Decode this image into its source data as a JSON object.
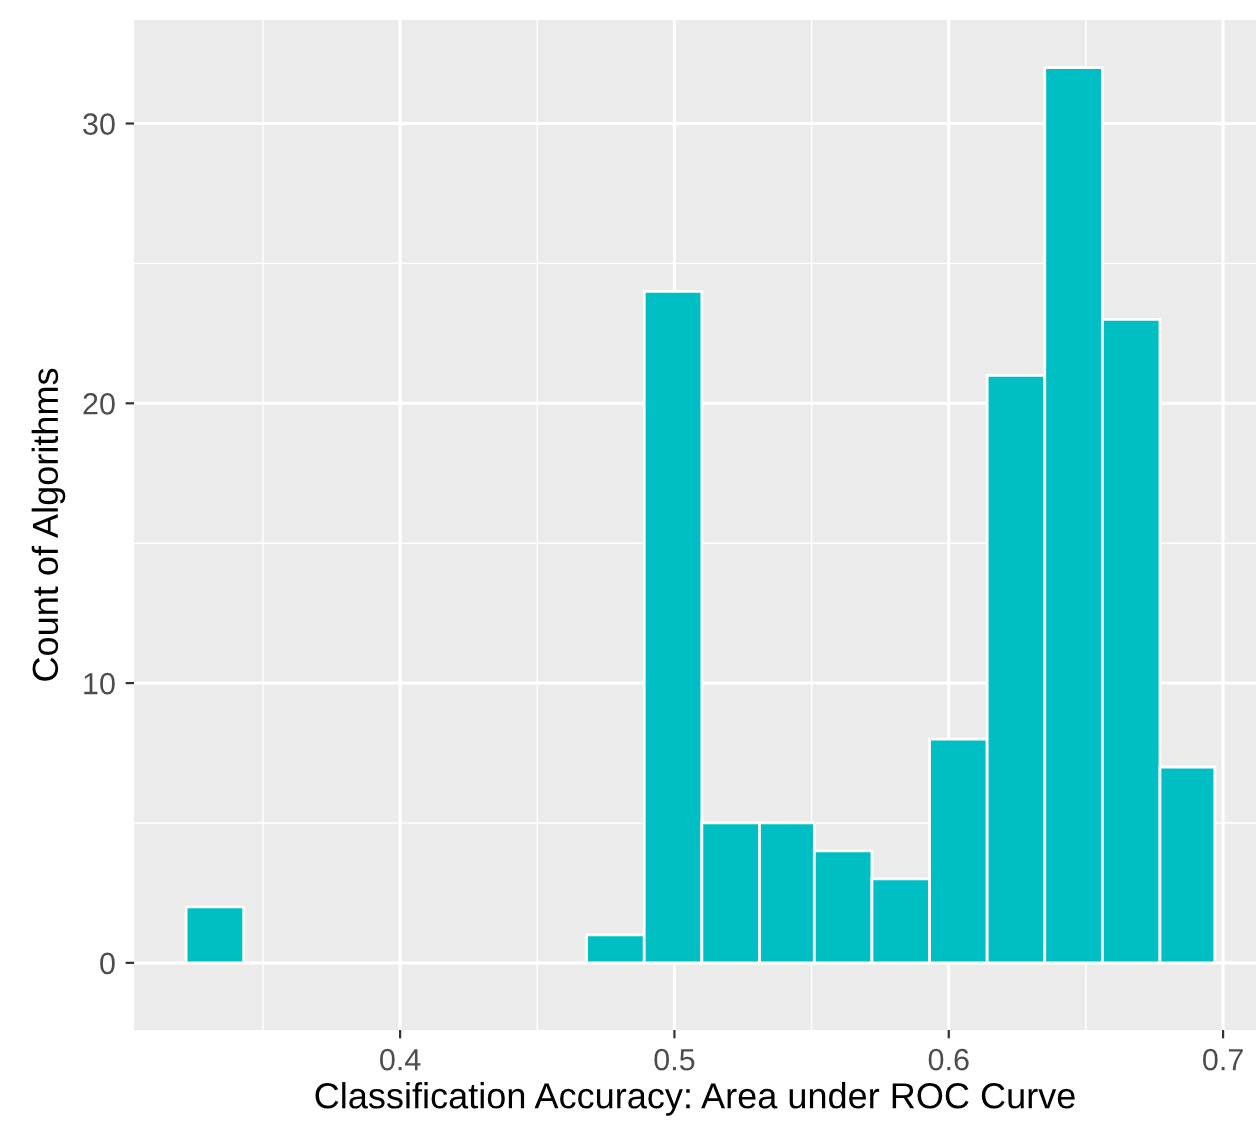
{
  "chart_data": {
    "type": "histogram",
    "xlabel": "Classification Accuracy: Area under ROC Curve",
    "ylabel": "Count of Algorithms",
    "bins": [
      0.322,
      0.343,
      0.468,
      0.489,
      0.51,
      0.531,
      0.551,
      0.572,
      0.593,
      0.614,
      0.635,
      0.656,
      0.677,
      0.697
    ],
    "values": [
      2,
      0,
      1,
      24,
      5,
      5,
      4,
      3,
      8,
      21,
      32,
      23,
      7
    ],
    "color": "#00bfc4",
    "xlim": [
      0.303,
      0.712
    ],
    "ylim": [
      -2.4,
      33.7
    ],
    "xticks": [
      {
        "value": 0.35,
        "label": null
      },
      0.4,
      {
        "value": 0.45,
        "label": null
      },
      0.5,
      {
        "value": 0.55,
        "label": null
      },
      0.6,
      {
        "value": 0.65,
        "label": null
      },
      0.7
    ],
    "yticks": [
      0,
      {
        "value": 5,
        "label": null
      },
      10,
      {
        "value": 15,
        "label": null
      },
      20,
      {
        "value": 25,
        "label": null
      },
      30
    ],
    "grid": true
  }
}
